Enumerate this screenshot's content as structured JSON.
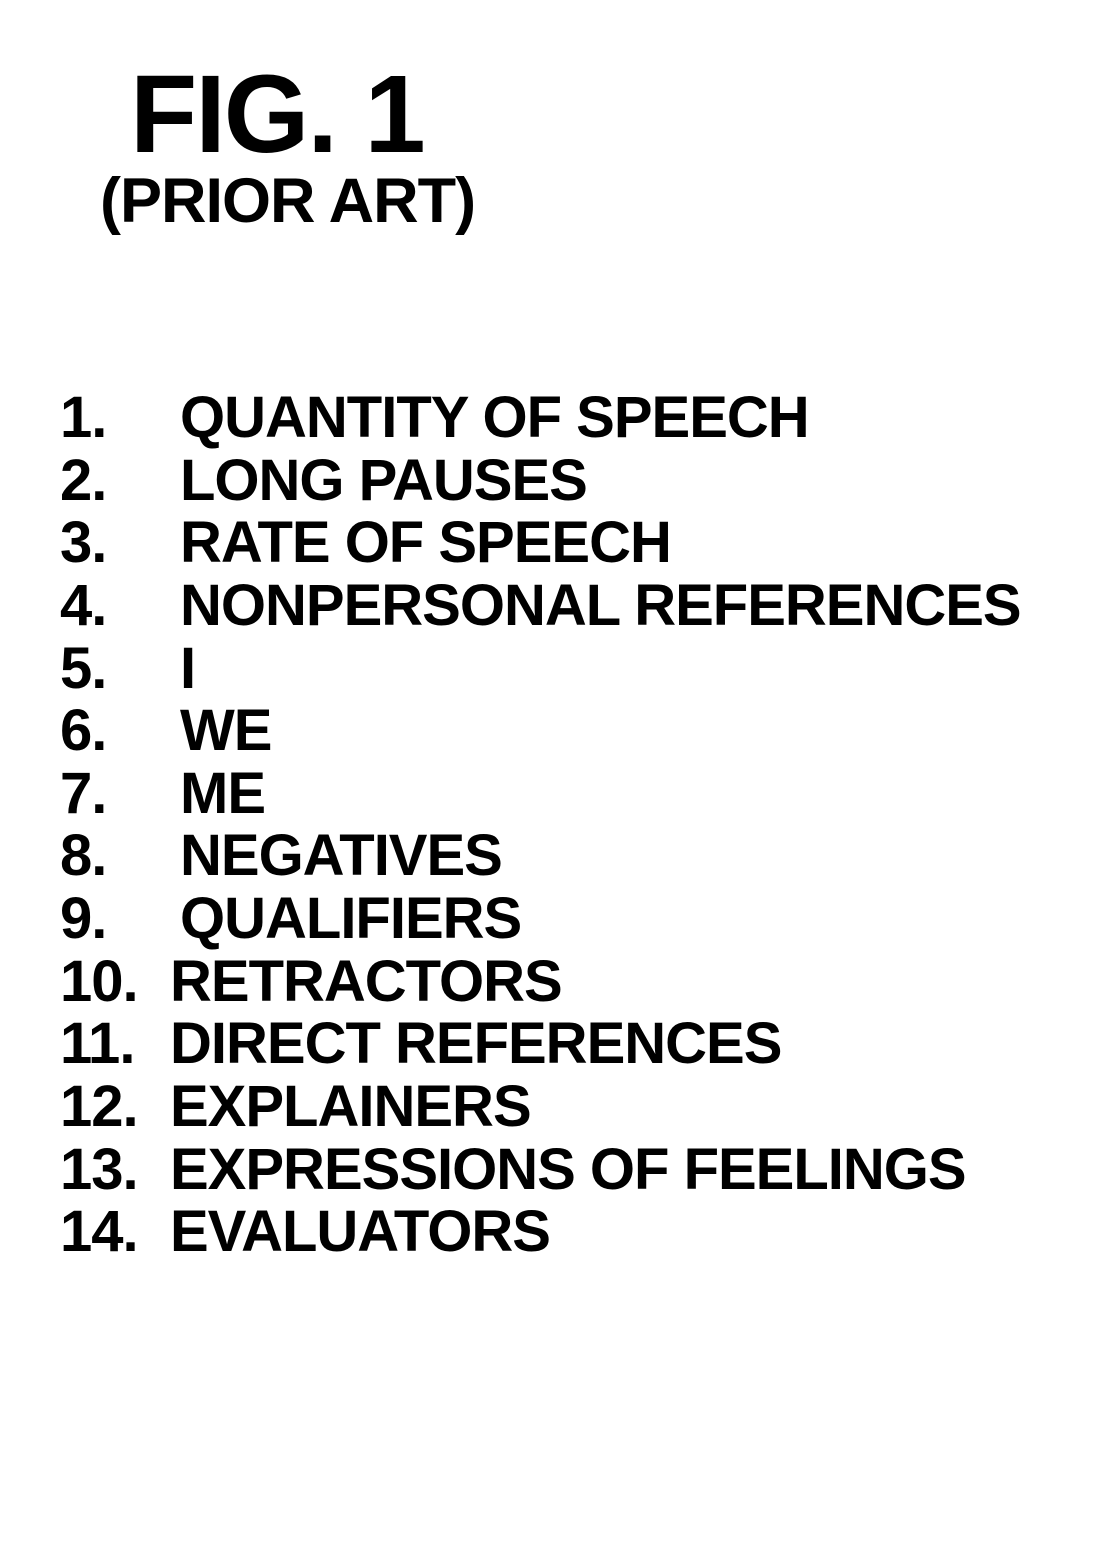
{
  "figure": {
    "title": "FIG. 1",
    "subtitle": "(PRIOR ART)",
    "title_fontsize": 110,
    "subtitle_fontsize": 63,
    "font_family": "Arial",
    "font_weight": 900,
    "text_color": "#000000",
    "background_color": "#ffffff"
  },
  "list": {
    "type": "ordered-list",
    "number_fontsize": 58,
    "text_fontsize": 58,
    "font_weight": 700,
    "text_color": "#000000",
    "items": [
      {
        "number": "1.",
        "label": "QUANTITY OF SPEECH"
      },
      {
        "number": "2.",
        "label": "LONG PAUSES"
      },
      {
        "number": "3.",
        "label": "RATE OF SPEECH"
      },
      {
        "number": "4.",
        "label": "NONPERSONAL REFERENCES"
      },
      {
        "number": "5.",
        "label": "I"
      },
      {
        "number": "6.",
        "label": "WE"
      },
      {
        "number": "7.",
        "label": "ME"
      },
      {
        "number": "8.",
        "label": "NEGATIVES"
      },
      {
        "number": "9.",
        "label": "QUALIFIERS"
      },
      {
        "number": "10.",
        "label": "RETRACTORS"
      },
      {
        "number": "11.",
        "label": "DIRECT REFERENCES"
      },
      {
        "number": "12.",
        "label": "EXPLAINERS"
      },
      {
        "number": "13.",
        "label": "EXPRESSIONS OF FEELINGS"
      },
      {
        "number": "14.",
        "label": "EVALUATORS"
      }
    ]
  }
}
